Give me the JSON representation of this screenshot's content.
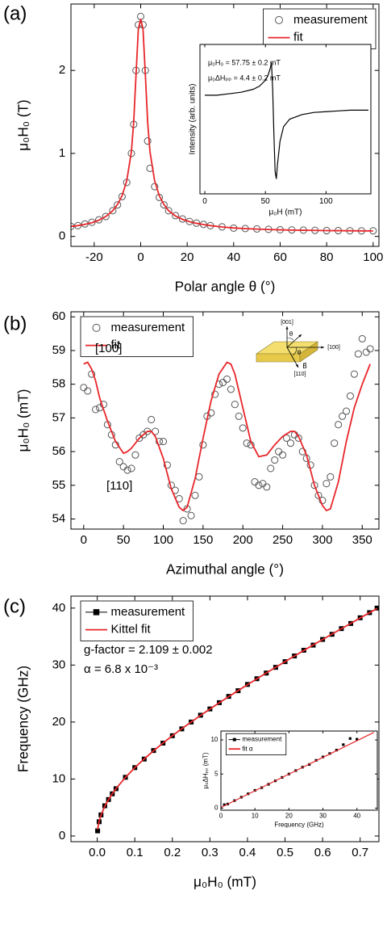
{
  "chart_data": [
    {
      "type": "scatter",
      "panel_label": "(a)",
      "xlabel": "Polar angle θ (°)",
      "ylabel": "μ₀H₀ (T)",
      "xlim": [
        -30,
        102.5
      ],
      "ylim": [
        -0.12,
        2.8
      ],
      "xticks": [
        -20,
        0,
        20,
        40,
        60,
        80,
        100
      ],
      "yticks": [
        0,
        1,
        2
      ],
      "legend": "upper right",
      "x": [
        -30,
        -27,
        -24,
        -21,
        -18,
        -15,
        -12,
        -10,
        -8,
        -6,
        -4,
        -3,
        -2,
        -1,
        0,
        1,
        2,
        3,
        4,
        6,
        8,
        10,
        12,
        15,
        18,
        21,
        24,
        27,
        30,
        35,
        40,
        45,
        50,
        55,
        60,
        65,
        70,
        75,
        80,
        85,
        90,
        95,
        100
      ],
      "series": [
        {
          "name": "measurement",
          "marker": "circle",
          "color": "#555555",
          "values": [
            0.12,
            0.13,
            0.15,
            0.17,
            0.2,
            0.24,
            0.31,
            0.38,
            0.48,
            0.65,
            1.0,
            1.35,
            2.0,
            2.55,
            2.65,
            2.55,
            2.0,
            1.15,
            0.82,
            0.6,
            0.47,
            0.38,
            0.31,
            0.25,
            0.21,
            0.18,
            0.16,
            0.145,
            0.13,
            0.115,
            0.1,
            0.095,
            0.09,
            0.085,
            0.08,
            0.078,
            0.075,
            0.073,
            0.07,
            0.07,
            0.068,
            0.067,
            0.067
          ]
        },
        {
          "name": "fit",
          "marker": "none",
          "color": "#e8262a",
          "values": [
            0.12,
            0.13,
            0.145,
            0.165,
            0.195,
            0.24,
            0.31,
            0.385,
            0.49,
            0.67,
            1.02,
            1.38,
            1.95,
            2.5,
            2.62,
            2.5,
            1.95,
            1.38,
            1.02,
            0.67,
            0.49,
            0.385,
            0.31,
            0.245,
            0.205,
            0.178,
            0.158,
            0.143,
            0.13,
            0.114,
            0.102,
            0.094,
            0.088,
            0.083,
            0.079,
            0.076,
            0.074,
            0.072,
            0.07,
            0.069,
            0.068,
            0.067,
            0.066
          ]
        }
      ]
    },
    {
      "type": "line",
      "xlabel": "μ₀H (mT)",
      "ylabel": "Intensity (arb. units)",
      "xlim": [
        -4,
        137
      ],
      "ylim": [
        0,
        1
      ],
      "xticks": [
        0,
        50,
        100
      ],
      "annotations": [
        "μ₀H₀ = 57.75 ± 0.2 mT",
        "μ₀ΔHₚₚ = 4.4 ± 0.2 mT"
      ],
      "x": [
        0,
        10,
        20,
        30,
        40,
        45,
        50,
        52,
        54,
        55,
        56,
        57,
        58,
        59,
        60,
        62,
        65,
        70,
        80,
        90,
        100,
        110,
        120,
        135
      ],
      "series": [
        {
          "marker": "none",
          "color": "#000000",
          "values": [
            0.66,
            0.66,
            0.67,
            0.68,
            0.7,
            0.72,
            0.76,
            0.79,
            0.84,
            0.88,
            0.7,
            0.4,
            0.15,
            0.1,
            0.2,
            0.35,
            0.45,
            0.5,
            0.53,
            0.545,
            0.55,
            0.555,
            0.56,
            0.56
          ]
        }
      ]
    },
    {
      "type": "scatter",
      "panel_label": "(b)",
      "xlabel": "Azimuthal angle (°)",
      "ylabel": "μ₀H₀ (mT)",
      "xlim": [
        -16,
        371
      ],
      "ylim": [
        53.7,
        60.15
      ],
      "xticks": [
        0,
        50,
        100,
        150,
        200,
        250,
        300,
        350
      ],
      "yticks": [
        54,
        55,
        56,
        57,
        58,
        59,
        60
      ],
      "legend": "upper left",
      "annotations": [
        "[100]",
        "[110]"
      ],
      "diagram_labels": [
        "[001]",
        "[100]",
        "[110]",
        "θ",
        "φ",
        "B⃗"
      ],
      "series": [
        {
          "name": "measurement",
          "marker": "circle",
          "color": "#555555",
          "x": [
            0,
            5,
            10,
            15,
            20,
            25,
            30,
            35,
            40,
            45,
            50,
            55,
            60,
            65,
            70,
            75,
            80,
            85,
            90,
            95,
            100,
            105,
            110,
            115,
            120,
            125,
            130,
            135,
            140,
            145,
            150,
            155,
            160,
            165,
            170,
            175,
            180,
            185,
            190,
            195,
            200,
            205,
            210,
            215,
            220,
            225,
            230,
            235,
            240,
            245,
            250,
            255,
            260,
            265,
            270,
            275,
            280,
            285,
            290,
            295,
            300,
            305,
            310,
            315,
            320,
            325,
            330,
            335,
            340,
            345,
            350,
            355,
            360
          ],
          "values": [
            57.9,
            57.8,
            58.3,
            57.25,
            57.3,
            57.4,
            56.8,
            56.5,
            56.2,
            55.7,
            55.55,
            55.45,
            55.5,
            55.9,
            56.4,
            56.5,
            56.6,
            56.95,
            56.6,
            56.3,
            56.3,
            55.6,
            55,
            54.85,
            54.6,
            53.95,
            54.3,
            54.1,
            54.7,
            55.25,
            56.2,
            57.05,
            57.15,
            57.7,
            58,
            58.05,
            58.15,
            57.85,
            57.4,
            57.05,
            56.7,
            56.25,
            56.2,
            55.1,
            55.0,
            55.05,
            54.95,
            55.5,
            55.75,
            56.0,
            55.9,
            56.4,
            56.25,
            56.5,
            56.4,
            56.0,
            55.8,
            55.6,
            55.0,
            54.7,
            54.55,
            55.05,
            55.25,
            56.25,
            56.8,
            57.05,
            57.2,
            57.65,
            58.3,
            58.9,
            59.35,
            58.95,
            59.05
          ]
        },
        {
          "name": "fit",
          "marker": "none",
          "color": "#e8262a",
          "x": [
            0,
            5,
            10,
            15,
            20,
            30,
            40,
            50,
            55,
            60,
            70,
            80,
            85,
            90,
            100,
            110,
            120,
            125,
            130,
            140,
            150,
            160,
            170,
            180,
            185,
            190,
            200,
            210,
            220,
            230,
            240,
            250,
            260,
            265,
            270,
            280,
            290,
            300,
            305,
            310,
            320,
            330,
            340,
            350,
            360
          ],
          "values": [
            58.6,
            58.65,
            58.45,
            58.1,
            57.6,
            56.9,
            56.3,
            55.95,
            56.0,
            56.1,
            56.4,
            56.6,
            56.6,
            56.45,
            55.8,
            54.9,
            54.35,
            54.25,
            54.35,
            55.2,
            56.4,
            57.5,
            58.3,
            58.65,
            58.6,
            58.3,
            57.3,
            56.3,
            55.85,
            55.9,
            56.2,
            56.45,
            56.6,
            56.6,
            56.45,
            55.9,
            55.0,
            54.4,
            54.25,
            54.3,
            55.1,
            56.3,
            57.3,
            58.0,
            58.6
          ]
        }
      ]
    },
    {
      "type": "scatter",
      "panel_label": "(c)",
      "xlabel": "μ₀H₀ (mT)",
      "ylabel": "Frequency (GHz)",
      "xlim": [
        -0.07,
        0.75
      ],
      "ylim": [
        -1,
        42.1
      ],
      "xticks": [
        {
          "value": 0,
          "label": "0.0"
        },
        0.1,
        0.2,
        0.3,
        0.4,
        0.5,
        0.6,
        0.7
      ],
      "yticks": [
        0,
        10,
        20,
        30,
        40
      ],
      "legend": "upper left",
      "annotations": [
        "g-factor = 2.109 ± 0.002",
        "α = 6.8 x 10⁻³"
      ],
      "x": [
        0.001,
        0.005,
        0.01,
        0.02,
        0.03,
        0.04,
        0.05,
        0.075,
        0.1,
        0.125,
        0.15,
        0.175,
        0.2,
        0.225,
        0.25,
        0.275,
        0.3,
        0.325,
        0.35,
        0.375,
        0.4,
        0.425,
        0.45,
        0.475,
        0.5,
        0.525,
        0.55,
        0.575,
        0.6,
        0.625,
        0.65,
        0.675,
        0.7,
        0.725,
        0.745
      ],
      "series": [
        {
          "name": "measurement",
          "marker": "square",
          "color": "#000000",
          "values": [
            0.9,
            2.5,
            3.7,
            5.3,
            6.4,
            7.4,
            8.3,
            10.3,
            12.0,
            13.5,
            15.0,
            16.3,
            17.6,
            18.8,
            20.0,
            21.2,
            22.3,
            23.4,
            24.5,
            25.5,
            26.6,
            27.6,
            28.6,
            29.6,
            30.6,
            31.6,
            32.6,
            33.5,
            34.5,
            35.4,
            36.4,
            37.3,
            38.3,
            39.2,
            40.0
          ]
        },
        {
          "name": "Kittel fit",
          "marker": "none",
          "color": "#e8262a",
          "values": [
            1.15,
            2.58,
            3.66,
            5.2,
            6.39,
            7.41,
            8.32,
            10.28,
            11.99,
            13.53,
            14.96,
            16.31,
            17.59,
            18.82,
            20.0,
            21.16,
            22.28,
            23.38,
            24.46,
            25.52,
            26.56,
            27.59,
            28.61,
            29.61,
            30.6,
            31.59,
            32.56,
            33.53,
            34.48,
            35.44,
            36.38,
            37.32,
            38.26,
            39.19,
            39.93
          ]
        }
      ]
    },
    {
      "type": "scatter",
      "xlabel": "Frequency (GHz)",
      "ylabel": "μ₀ΔHₚₚ (mT)",
      "xlim": [
        0,
        46
      ],
      "ylim": [
        -0.3,
        11.3
      ],
      "xticks": [
        0,
        10,
        20,
        30,
        40
      ],
      "yticks": [
        0,
        5,
        10
      ],
      "legend": "upper left",
      "series": [
        {
          "name": "measurement",
          "marker": "square",
          "color": "#000000",
          "x": [
            1,
            2,
            4,
            6,
            8,
            10,
            12,
            14,
            16,
            18,
            20,
            22,
            24,
            26,
            28,
            30,
            32,
            34,
            36,
            38,
            40
          ],
          "values": [
            0.5,
            0.6,
            1.1,
            1.6,
            2.1,
            2.6,
            3.0,
            3.5,
            4.0,
            4.5,
            5.0,
            5.5,
            6.0,
            6.4,
            7.0,
            7.5,
            8.0,
            8.5,
            9.3,
            10.2,
            10.1
          ]
        },
        {
          "name": "fit α",
          "marker": "none",
          "color": "#e8262a",
          "x": [
            0,
            45
          ],
          "values": [
            0.1,
            11.1
          ]
        }
      ]
    }
  ]
}
